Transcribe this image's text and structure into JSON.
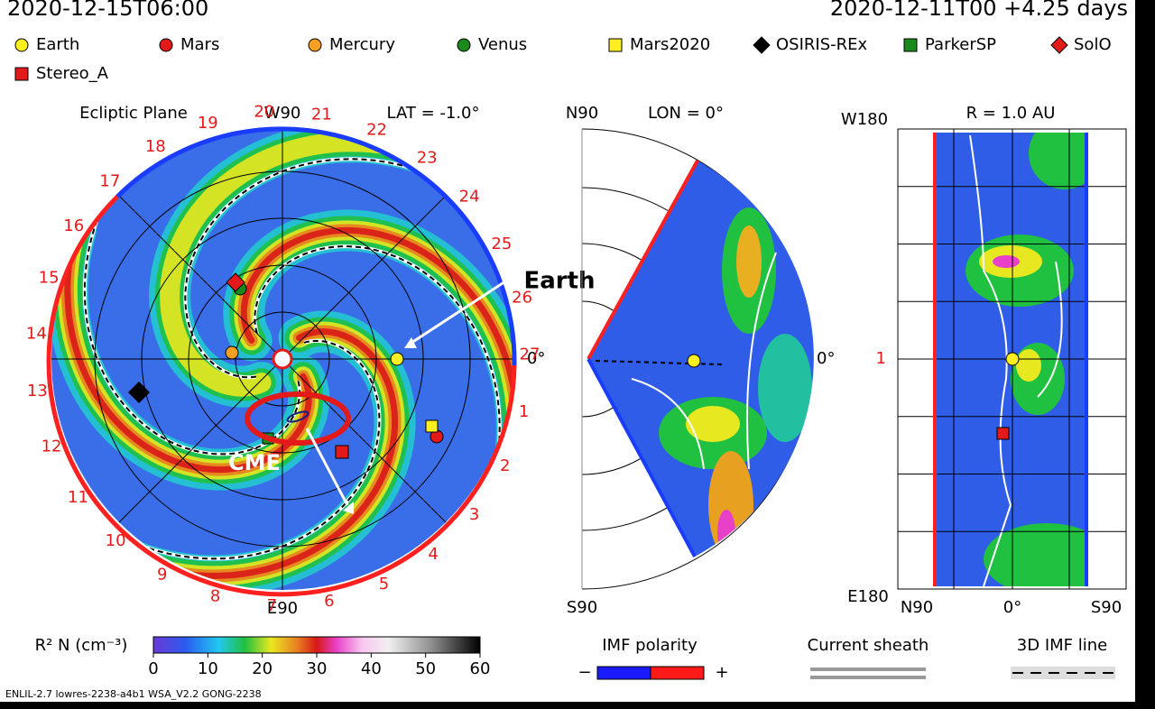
{
  "header": {
    "left": "2020-12-15T06:00",
    "right": "2020-12-11T00  +4.25 days"
  },
  "legend": [
    {
      "label": "Earth",
      "color": "#ffee22",
      "shape": "circle"
    },
    {
      "label": "Mars",
      "color": "#e41a1a",
      "shape": "circle"
    },
    {
      "label": "Mercury",
      "color": "#f5a020",
      "shape": "circle"
    },
    {
      "label": "Venus",
      "color": "#1a8a1a",
      "shape": "circle"
    },
    {
      "label": "Mars2020",
      "color": "#ffee22",
      "shape": "square"
    },
    {
      "label": "OSIRIS-REx",
      "color": "#000000",
      "shape": "diamond"
    },
    {
      "label": "ParkerSP",
      "color": "#1a8a1a",
      "shape": "square"
    },
    {
      "label": "SolO",
      "color": "#e41a1a",
      "shape": "diamond"
    },
    {
      "label": "Stereo_A",
      "color": "#e41a1a",
      "shape": "square"
    }
  ],
  "ecliptic": {
    "title": "Ecliptic Plane",
    "top": "W90",
    "lat": "LAT = -1.0°",
    "right": "0°",
    "bottom": "E90",
    "day_labels": [
      1,
      2,
      3,
      4,
      5,
      6,
      7,
      8,
      9,
      10,
      11,
      12,
      13,
      14,
      15,
      16,
      17,
      18,
      19,
      20,
      21,
      22,
      23,
      24,
      25,
      26,
      27
    ]
  },
  "meridional": {
    "top": "N90",
    "title": "LON = 0°",
    "right": "0°",
    "bottom": "S90"
  },
  "radial": {
    "top_left": "W180",
    "title": "R = 1.0 AU",
    "middle_left": "1",
    "bottom_left": "E180",
    "bottom_labels": [
      "N90",
      "0°",
      "S90"
    ]
  },
  "colorbar": {
    "label": "R² N (cm⁻³)",
    "ticks": [
      0,
      10,
      20,
      30,
      40,
      50,
      60
    ]
  },
  "imf": {
    "title": "IMF polarity",
    "minus": "−",
    "plus": "+"
  },
  "sheath": "Current sheath",
  "imf_line": "3D IMF line",
  "annotations": {
    "earth": "Earth",
    "cme": "CME"
  },
  "footer": "ENLIL-2.7 lowres-2238-a4b1 WSA_V2.2 GONG-2238"
}
